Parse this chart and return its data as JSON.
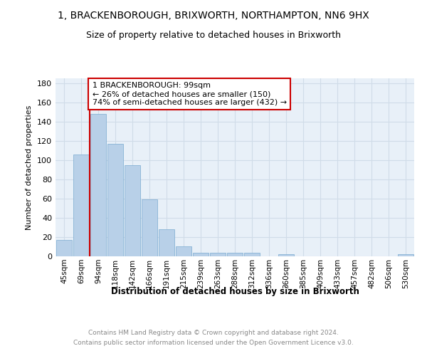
{
  "title": "1, BRACKENBOROUGH, BRIXWORTH, NORTHAMPTON, NN6 9HX",
  "subtitle": "Size of property relative to detached houses in Brixworth",
  "xlabel": "Distribution of detached houses by size in Brixworth",
  "ylabel": "Number of detached properties",
  "bar_color": "#b8d0e8",
  "bar_edge_color": "#7aaad0",
  "background_color": "#e8f0f8",
  "grid_color": "#d0dce8",
  "categories": [
    "45sqm",
    "69sqm",
    "94sqm",
    "118sqm",
    "142sqm",
    "166sqm",
    "191sqm",
    "215sqm",
    "239sqm",
    "263sqm",
    "288sqm",
    "312sqm",
    "336sqm",
    "360sqm",
    "385sqm",
    "409sqm",
    "433sqm",
    "457sqm",
    "482sqm",
    "506sqm",
    "530sqm"
  ],
  "values": [
    17,
    106,
    148,
    117,
    95,
    59,
    28,
    10,
    4,
    4,
    4,
    4,
    0,
    2,
    0,
    0,
    0,
    0,
    0,
    0,
    2
  ],
  "ylim": [
    0,
    185
  ],
  "yticks": [
    0,
    20,
    40,
    60,
    80,
    100,
    120,
    140,
    160,
    180
  ],
  "property_bin_index": 2,
  "annotation_lines": [
    "1 BRACKENBOROUGH: 99sqm",
    "← 26% of detached houses are smaller (150)",
    "74% of semi-detached houses are larger (432) →"
  ],
  "annotation_box_color": "#cc0000",
  "red_line_color": "#cc0000",
  "footer_line1": "Contains HM Land Registry data © Crown copyright and database right 2024.",
  "footer_line2": "Contains public sector information licensed under the Open Government Licence v3.0."
}
